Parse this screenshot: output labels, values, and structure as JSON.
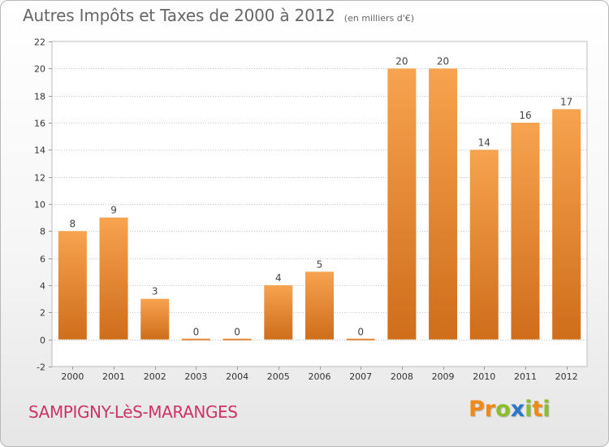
{
  "header": {
    "title": "Autres Impôts et Taxes de 2000 à 2012",
    "subtitle": "(en milliers d'€)"
  },
  "footer": {
    "commune": "SAMPIGNY-LèS-MARANGES",
    "brand": [
      "P",
      "r",
      "o",
      "x",
      "i",
      "t",
      "i"
    ]
  },
  "colors": {
    "bar_light": "#f7a34f",
    "bar_dark": "#cf6d1b",
    "title": "#666666",
    "commune": "#cc3366",
    "brand_letters": [
      "#f08a16",
      "#f08a16",
      "#8abf2a",
      "#2b76c9",
      "#8abf2a",
      "#f08a16",
      "#8abf2a"
    ]
  },
  "chart_data": {
    "type": "bar",
    "title": "Autres Impôts et Taxes de 2000 à 2012",
    "subtitle": "(en milliers d'€)",
    "categories": [
      "2000",
      "2001",
      "2002",
      "2003",
      "2004",
      "2005",
      "2006",
      "2007",
      "2008",
      "2009",
      "2010",
      "2011",
      "2012"
    ],
    "values": [
      8,
      9,
      3,
      0,
      0,
      4,
      5,
      0,
      20,
      20,
      14,
      16,
      17
    ],
    "data_labels": [
      "8",
      "9",
      "3",
      "0",
      "0",
      "4",
      "5",
      "0",
      "20",
      "20",
      "14",
      "16",
      "17"
    ],
    "ylim": [
      -2,
      22
    ],
    "yticks": [
      -2,
      0,
      2,
      4,
      6,
      8,
      10,
      12,
      14,
      16,
      18,
      20,
      22
    ],
    "ytick_labels": [
      "-2",
      "0",
      "2",
      "4",
      "6",
      "8",
      "10",
      "12",
      "14",
      "16",
      "18",
      "20",
      "22"
    ],
    "xlabel": "",
    "ylabel": "",
    "grid": "horizontal-dotted",
    "legend": "none"
  }
}
